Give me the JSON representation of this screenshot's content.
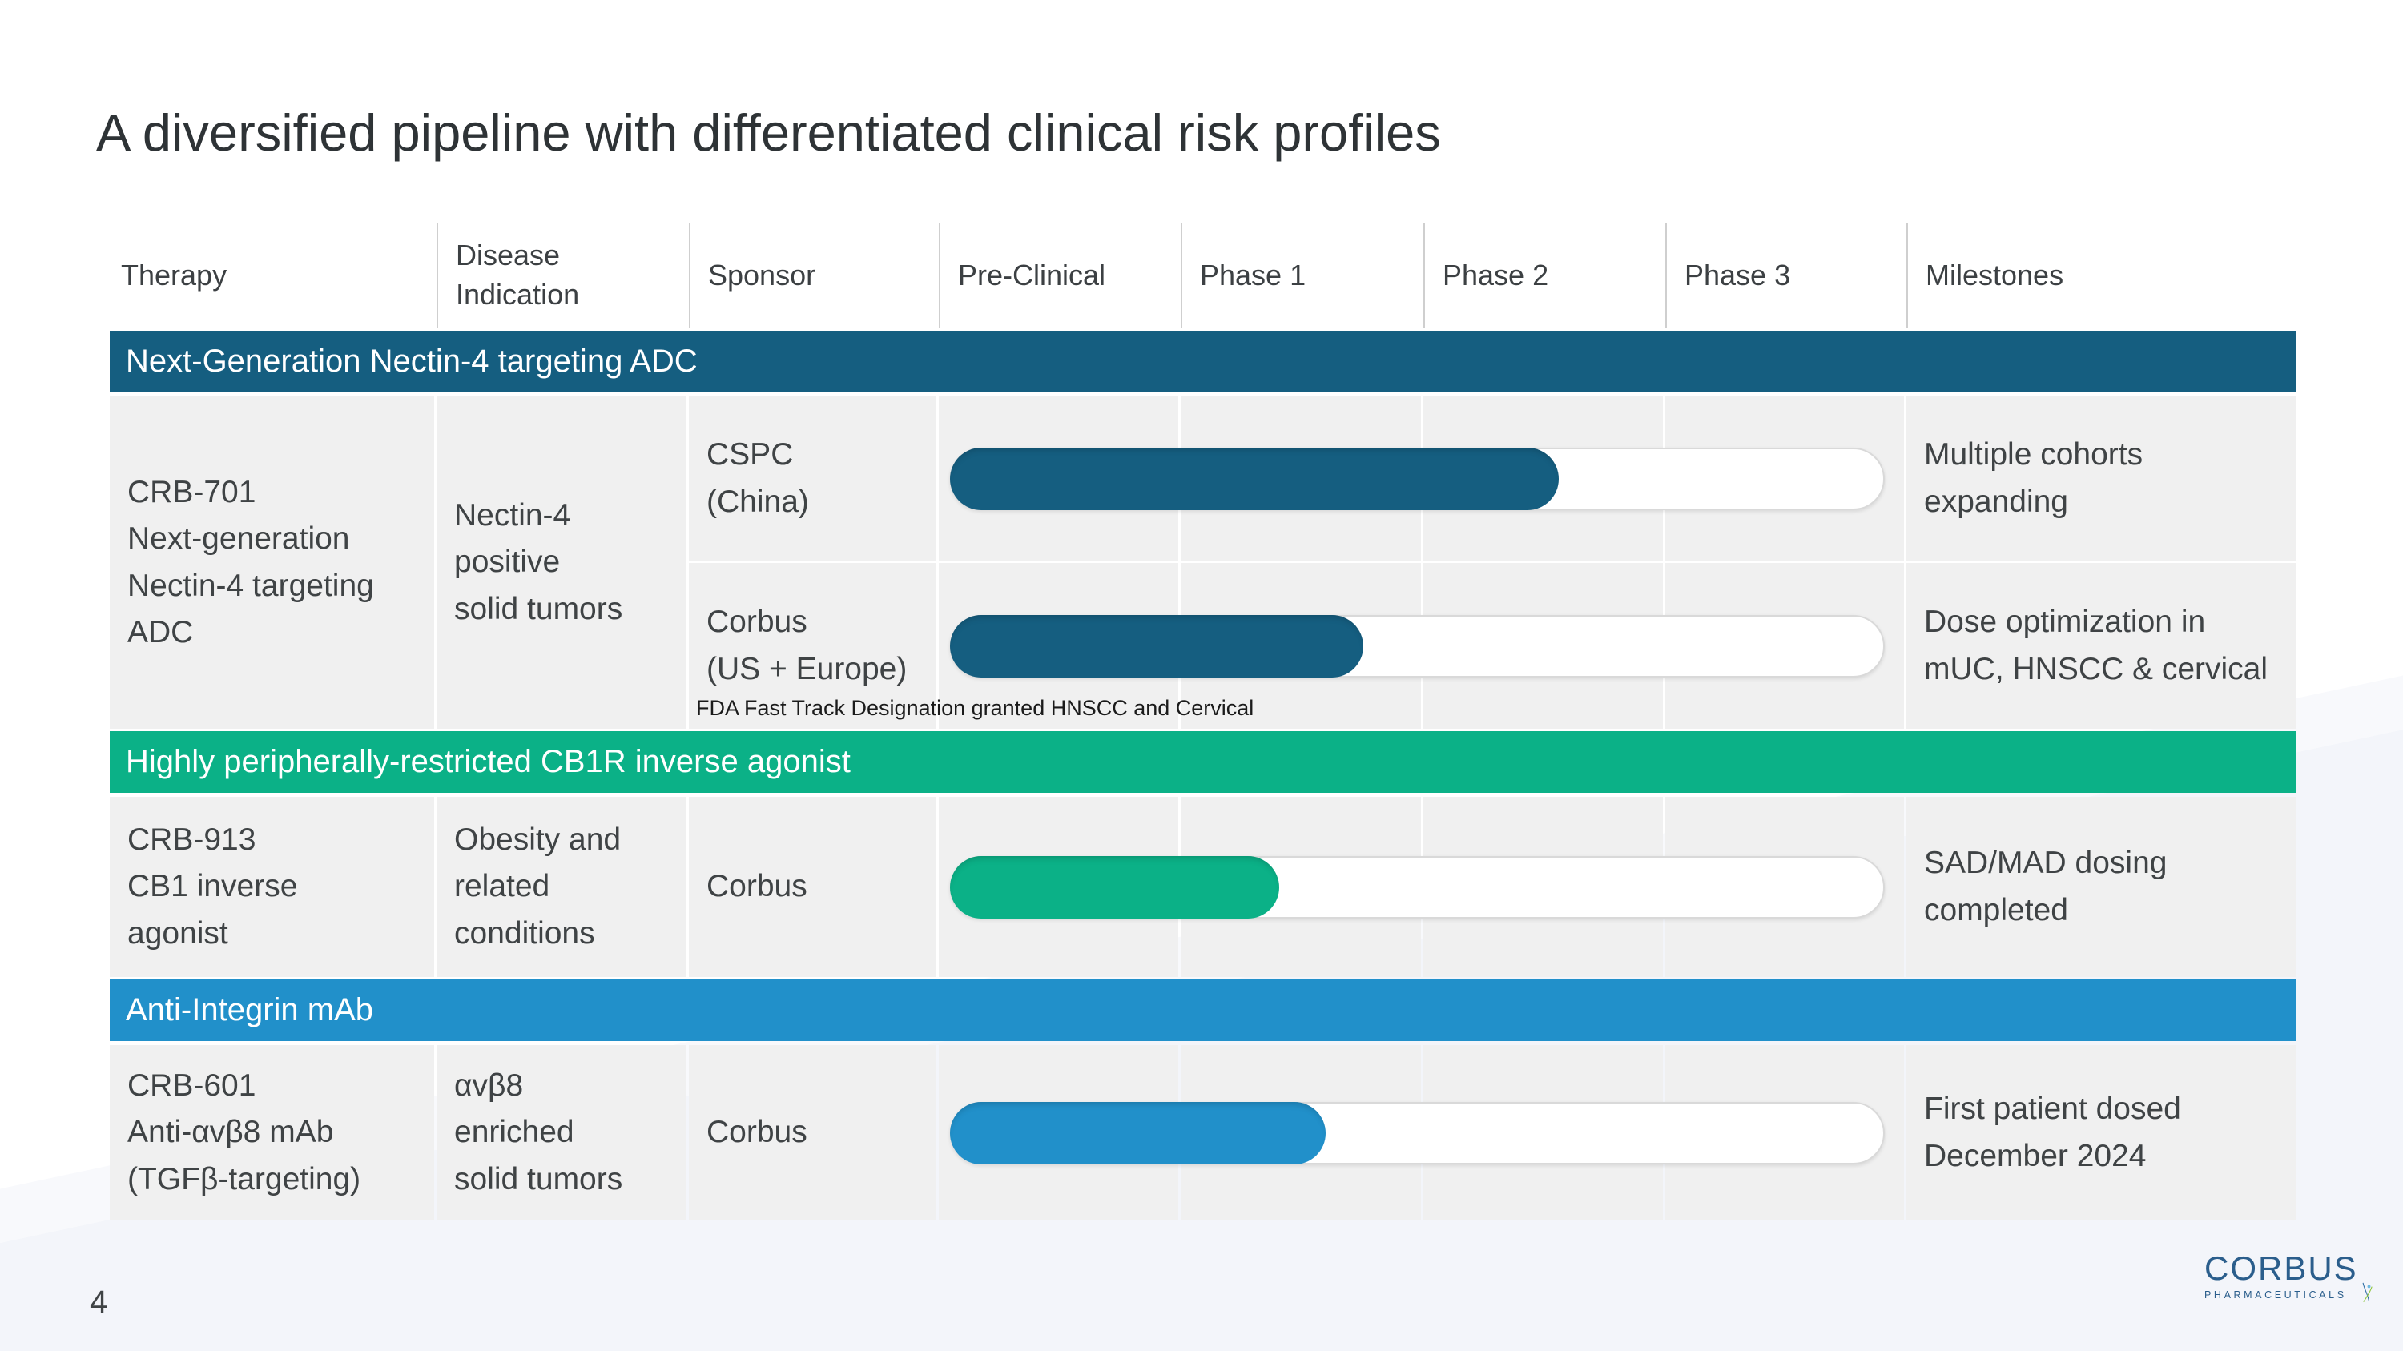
{
  "title": "A diversified pipeline with differentiated clinical risk profiles",
  "page_number": "4",
  "colors": {
    "section_adc": "#155E80",
    "section_cb1r": "#0BB187",
    "section_mab": "#2190CA",
    "cell_bg": "#f0f0f0",
    "track_bg": "#ffffff"
  },
  "table": {
    "headers": [
      "Therapy",
      "Disease\nIndication",
      "Sponsor",
      "Pre-Clinical",
      "Phase 1",
      "Phase 2",
      "Phase 3",
      "Milestones"
    ],
    "sections": [
      {
        "label": "Next-Generation Nectin-4 targeting ADC",
        "color": "#155E80",
        "therapy": "CRB-701\nNext-generation\nNectin-4 targeting\nADC",
        "disease": "Nectin-4\npositive\nsolid tumors",
        "rows": [
          {
            "sponsor": "CSPC\n(China)",
            "progress_pct": 65,
            "phase_reached": "Phase 2",
            "milestone": "Multiple cohorts\nexpanding"
          },
          {
            "sponsor": "Corbus\n(US + Europe)",
            "progress_pct": 44,
            "phase_reached": "Phase 1",
            "milestone": "Dose optimization in\nmUC, HNSCC & cervical",
            "footnote": "FDA Fast Track Designation granted HNSCC and Cervical"
          }
        ]
      },
      {
        "label": "Highly peripherally-restricted CB1R inverse agonist",
        "color": "#0BB187",
        "therapy": "CRB-913\nCB1 inverse\nagonist",
        "disease": "Obesity and\nrelated\nconditions",
        "rows": [
          {
            "sponsor": "Corbus",
            "progress_pct": 35,
            "phase_reached": "Phase 1",
            "milestone": "SAD/MAD dosing\ncompleted"
          }
        ]
      },
      {
        "label": "Anti-Integrin mAb",
        "color": "#2190CA",
        "therapy": "CRB-601\nAnti-αvβ8 mAb\n(TGFβ-targeting)",
        "disease": "αvβ8\nenriched\nsolid tumors",
        "rows": [
          {
            "sponsor": "Corbus",
            "progress_pct": 40,
            "phase_reached": "Phase 1",
            "milestone": "First patient dosed\nDecember 2024"
          }
        ]
      }
    ]
  },
  "logo": {
    "wordmark": "CORBUS",
    "subtitle": "PHARMACEUTICALS"
  }
}
